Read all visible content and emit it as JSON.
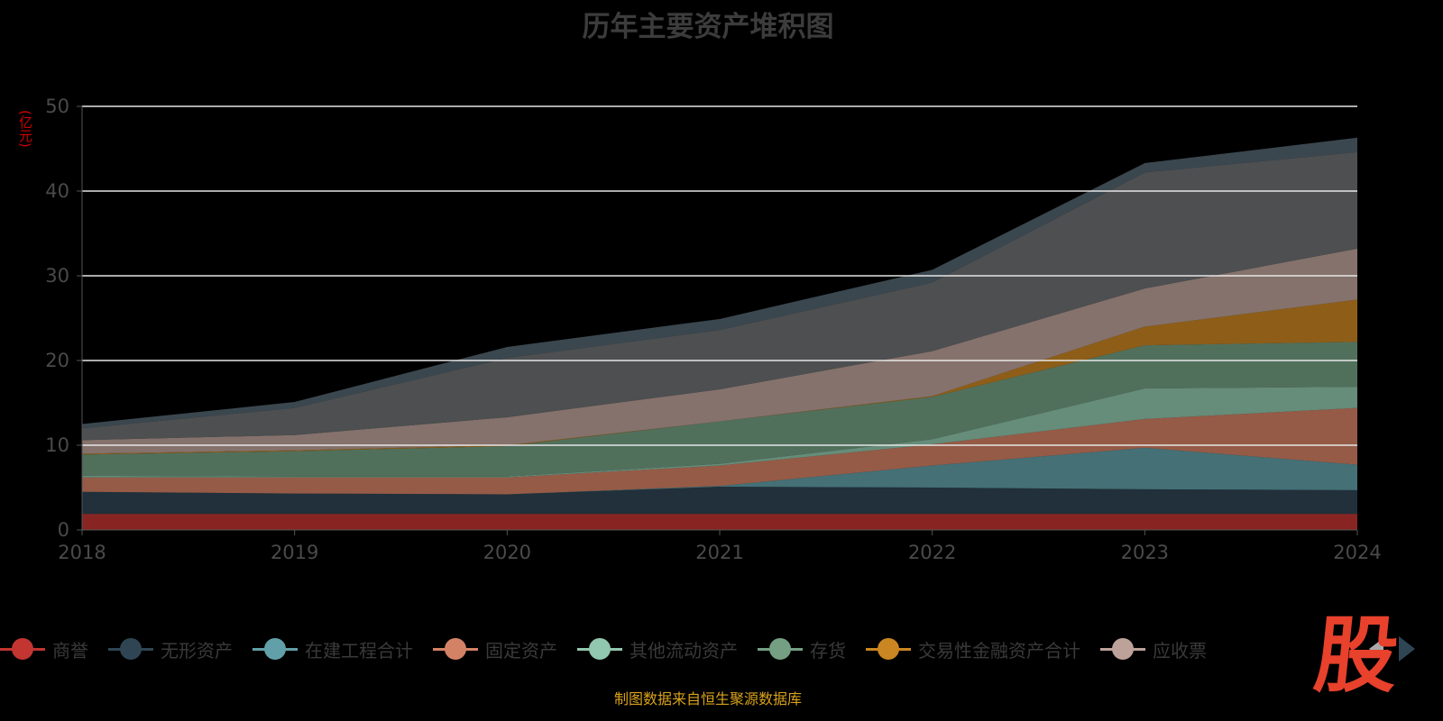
{
  "chart_data": {
    "type": "area",
    "stacked": true,
    "title": "历年主要资产堆积图",
    "ylabel": "(亿元)",
    "xlabel": "",
    "categories": [
      "2018",
      "2019",
      "2020",
      "2021",
      "2022",
      "2023",
      "2024"
    ],
    "ylim": [
      0,
      50
    ],
    "yticks": [
      0,
      10,
      20,
      30,
      40,
      50
    ],
    "grid": true,
    "legend_position": "bottom",
    "series": [
      {
        "name": "商誉",
        "color": "#c23531",
        "values": [
          1.9,
          1.9,
          1.9,
          1.9,
          1.9,
          1.9,
          1.9
        ]
      },
      {
        "name": "无形资产",
        "color": "#2f4554",
        "values": [
          2.6,
          2.4,
          2.3,
          3.2,
          3.1,
          2.9,
          2.8
        ]
      },
      {
        "name": "在建工程合计",
        "color": "#61a0a8",
        "values": [
          0,
          0,
          0,
          0.1,
          2.6,
          4.9,
          3.0
        ]
      },
      {
        "name": "固定资产",
        "color": "#d48265",
        "values": [
          1.7,
          1.9,
          2.0,
          2.4,
          2.5,
          3.4,
          6.7
        ]
      },
      {
        "name": "其他流动资产",
        "color": "#91c7ae",
        "values": [
          0.2,
          0.1,
          0.1,
          0.2,
          0.6,
          3.6,
          2.5
        ]
      },
      {
        "name": "存货",
        "color": "#749f83",
        "values": [
          2.5,
          3.0,
          3.6,
          5.0,
          5.0,
          5.1,
          5.3
        ]
      },
      {
        "name": "交易性金融资产合计",
        "color": "#ca8622",
        "values": [
          0.1,
          0.1,
          0.1,
          0.0,
          0.1,
          2.2,
          5.0
        ]
      },
      {
        "name": "应收票",
        "color": "#bda29a",
        "values": [
          1.6,
          1.8,
          3.3,
          3.8,
          5.3,
          4.5,
          6.0
        ]
      },
      {
        "name": "",
        "color": "#6e7074",
        "values": [
          1.4,
          3.2,
          7.0,
          7.0,
          8.1,
          13.7,
          11.4
        ]
      },
      {
        "name": "",
        "color": "#546570",
        "values": [
          0.5,
          0.7,
          1.3,
          1.3,
          1.5,
          1.1,
          1.7
        ]
      }
    ]
  },
  "logo_text": "股",
  "footer": "制图数据来自恒生聚源数据库"
}
